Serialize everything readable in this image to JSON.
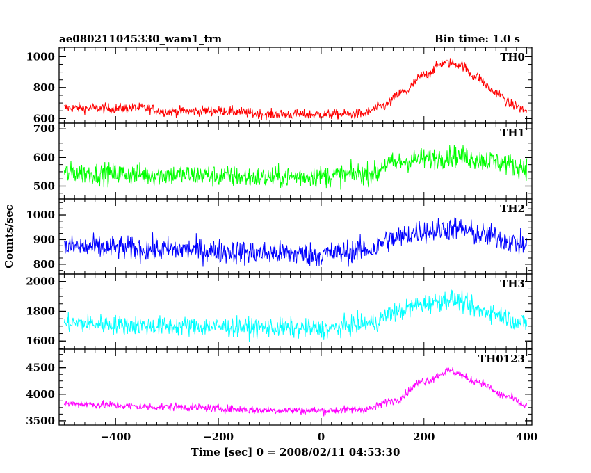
{
  "chart_data": {
    "type": "line",
    "title": "ae080211045330_wam1_trn",
    "subtitle": "Bin time: 1.0 s",
    "xlabel": "Time [sec] 0 = 2008/02/11 04:53:30",
    "ylabel": "Counts/sec",
    "xlim": [
      -510,
      410
    ],
    "x_ticks": [
      -400,
      -200,
      0,
      200,
      400
    ],
    "grid": false,
    "panels": [
      {
        "name": "TH0",
        "color": "#ff0000",
        "ylim": [
          570,
          1060
        ],
        "y_ticks": [
          600,
          800,
          1000
        ],
        "baseline": 620,
        "peak": 960,
        "noise": 30,
        "shape": [
          {
            "x": -500,
            "y": 668
          },
          {
            "x": -400,
            "y": 665
          },
          {
            "x": -350,
            "y": 668
          },
          {
            "x": -300,
            "y": 645
          },
          {
            "x": -200,
            "y": 650
          },
          {
            "x": -100,
            "y": 627
          },
          {
            "x": 0,
            "y": 625
          },
          {
            "x": 80,
            "y": 630
          },
          {
            "x": 120,
            "y": 680
          },
          {
            "x": 160,
            "y": 770
          },
          {
            "x": 200,
            "y": 880
          },
          {
            "x": 240,
            "y": 960
          },
          {
            "x": 270,
            "y": 950
          },
          {
            "x": 300,
            "y": 870
          },
          {
            "x": 340,
            "y": 770
          },
          {
            "x": 370,
            "y": 690
          },
          {
            "x": 400,
            "y": 650
          }
        ]
      },
      {
        "name": "TH1",
        "color": "#00ff00",
        "ylim": [
          455,
          720
        ],
        "y_ticks": [
          500,
          600,
          700
        ],
        "noise": 35,
        "shape": [
          {
            "x": -500,
            "y": 545
          },
          {
            "x": -300,
            "y": 540
          },
          {
            "x": -100,
            "y": 530
          },
          {
            "x": 0,
            "y": 535
          },
          {
            "x": 110,
            "y": 545
          },
          {
            "x": 120,
            "y": 575
          },
          {
            "x": 200,
            "y": 595
          },
          {
            "x": 260,
            "y": 605
          },
          {
            "x": 320,
            "y": 590
          },
          {
            "x": 400,
            "y": 565
          }
        ]
      },
      {
        "name": "TH2",
        "color": "#0000ff",
        "ylim": [
          760,
          1065
        ],
        "y_ticks": [
          800,
          900,
          1000
        ],
        "noise": 45,
        "shape": [
          {
            "x": -500,
            "y": 870
          },
          {
            "x": -300,
            "y": 860
          },
          {
            "x": -100,
            "y": 845
          },
          {
            "x": 0,
            "y": 840
          },
          {
            "x": 100,
            "y": 860
          },
          {
            "x": 130,
            "y": 900
          },
          {
            "x": 200,
            "y": 935
          },
          {
            "x": 260,
            "y": 945
          },
          {
            "x": 320,
            "y": 915
          },
          {
            "x": 400,
            "y": 880
          }
        ]
      },
      {
        "name": "TH3",
        "color": "#00ffff",
        "ylim": [
          1545,
          2050
        ],
        "y_ticks": [
          1600,
          1800,
          2000
        ],
        "noise": 60,
        "shape": [
          {
            "x": -500,
            "y": 1720
          },
          {
            "x": -300,
            "y": 1700
          },
          {
            "x": -100,
            "y": 1690
          },
          {
            "x": 0,
            "y": 1680
          },
          {
            "x": 100,
            "y": 1720
          },
          {
            "x": 140,
            "y": 1790
          },
          {
            "x": 200,
            "y": 1850
          },
          {
            "x": 250,
            "y": 1880
          },
          {
            "x": 320,
            "y": 1800
          },
          {
            "x": 400,
            "y": 1720
          }
        ]
      },
      {
        "name": "TH0123",
        "color": "#ff00ff",
        "ylim": [
          3420,
          4850
        ],
        "y_ticks": [
          3500,
          4000,
          4500
        ],
        "noise": 70,
        "shape": [
          {
            "x": -500,
            "y": 3820
          },
          {
            "x": -300,
            "y": 3760
          },
          {
            "x": -100,
            "y": 3700
          },
          {
            "x": 0,
            "y": 3690
          },
          {
            "x": 90,
            "y": 3720
          },
          {
            "x": 140,
            "y": 3880
          },
          {
            "x": 200,
            "y": 4250
          },
          {
            "x": 250,
            "y": 4440
          },
          {
            "x": 300,
            "y": 4250
          },
          {
            "x": 360,
            "y": 3960
          },
          {
            "x": 400,
            "y": 3780
          }
        ]
      }
    ]
  }
}
